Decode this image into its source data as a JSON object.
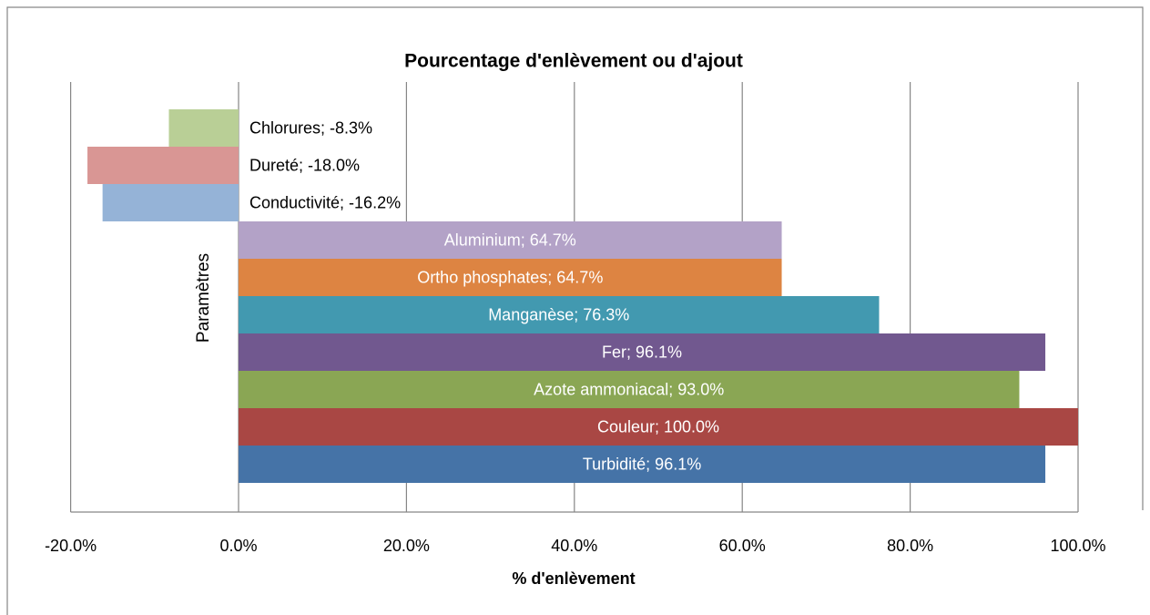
{
  "chart_data": {
    "type": "barh",
    "title": "Pourcentage  d'enlèvement ou d'ajout",
    "xlabel": "% d'enlèvement",
    "ylabel": "Paramètres",
    "values": [
      -8.3,
      -18.0,
      -16.2,
      64.7,
      64.7,
      76.3,
      96.1,
      93.0,
      100.0,
      96.1
    ],
    "value_labels": [
      "Chlorures; -8.3%",
      "Dureté; -18.0%",
      "Conductivité; -16.2%",
      "Aluminium; 64.7%",
      "Ortho phosphates; 64.7%",
      "Manganèse; 76.3%",
      "Fer; 96.1%",
      "Azote ammoniacal; 93.0%",
      "Couleur; 100.0%",
      "Turbidité; 96.1%"
    ],
    "colors": [
      "#b9cf96",
      "#d99694",
      "#95b3d7",
      "#b3a2c7",
      "#dd8442",
      "#4299b0",
      "#71588f",
      "#8aa654",
      "#a94744",
      "#4573a7"
    ],
    "xlim": [
      -20,
      100
    ],
    "xticks": [
      {
        "value": -20,
        "label": "-20.0%"
      },
      {
        "value": 0,
        "label": "0.0%"
      },
      {
        "value": 20,
        "label": "20.0%"
      },
      {
        "value": 40,
        "label": "40.0%"
      },
      {
        "value": 60,
        "label": "60.0%"
      },
      {
        "value": 80,
        "label": "80.0%"
      },
      {
        "value": 100,
        "label": "100.0%"
      }
    ],
    "grid": true
  }
}
